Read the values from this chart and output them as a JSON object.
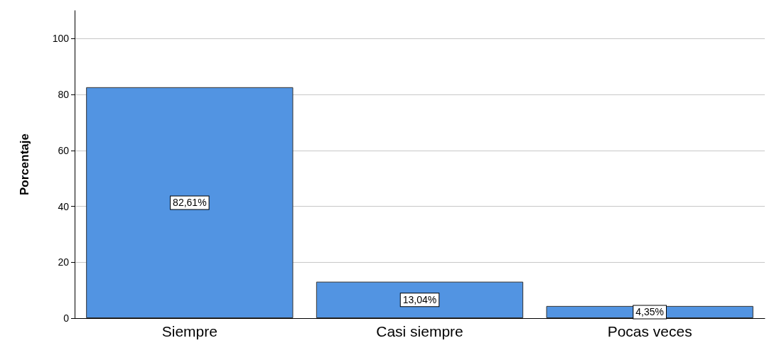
{
  "chart_data": {
    "type": "bar",
    "ylabel": "Porcentaje",
    "categories": [
      "Siempre",
      "Casi siempre",
      "Pocas veces"
    ],
    "values": [
      82.61,
      13.04,
      4.35
    ],
    "color": "#5294e2",
    "value_labels": [
      "82,61%",
      "13,04%",
      "4,35%"
    ],
    "ylim": [
      0,
      110
    ],
    "yticks": [
      0,
      20,
      40,
      60,
      80,
      100
    ],
    "grid": "y"
  }
}
